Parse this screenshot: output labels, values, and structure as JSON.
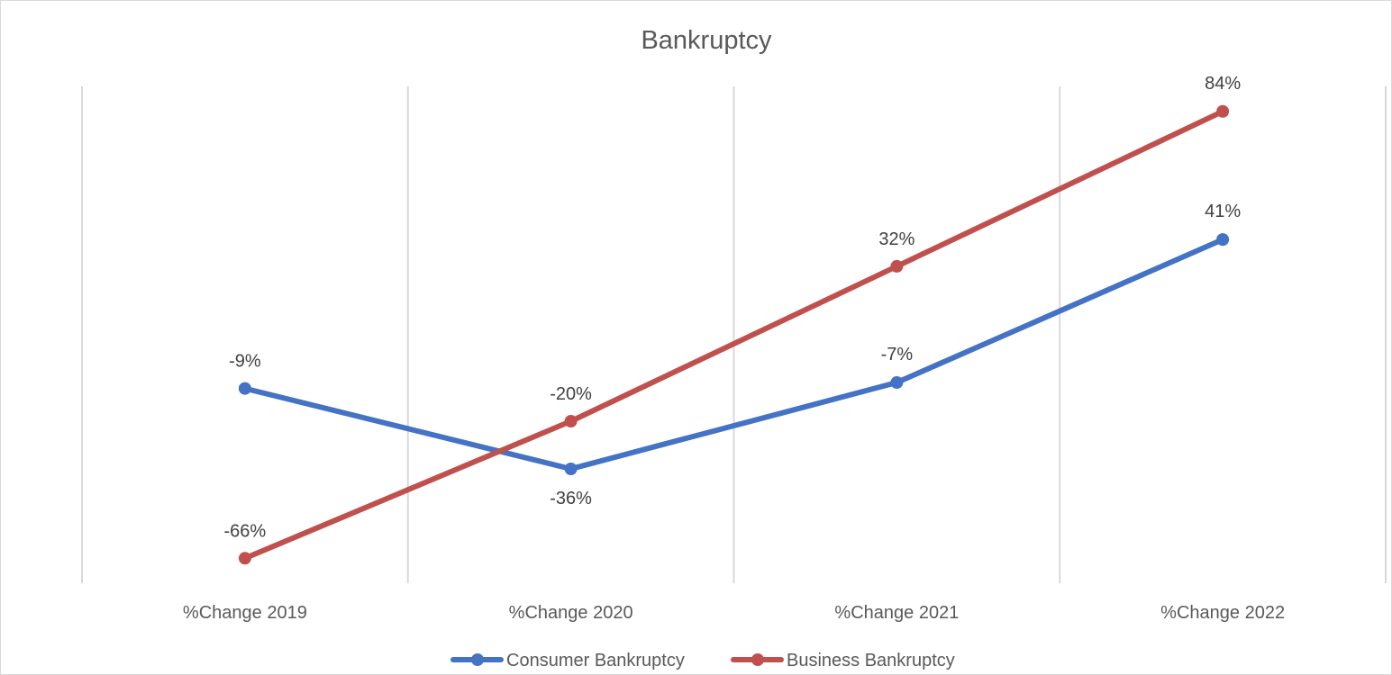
{
  "chart_data": {
    "type": "line",
    "title": "Bankruptcy",
    "categories": [
      "%Change 2019",
      "%Change 2020",
      "%Change 2021",
      "%Change 2022"
    ],
    "series": [
      {
        "name": "Consumer Bankruptcy",
        "values": [
          -9,
          -36,
          -7,
          41
        ],
        "labels": [
          "-9%",
          "-36%",
          "-7%",
          "41%"
        ],
        "color": "#4472c4"
      },
      {
        "name": "Business Bankruptcy",
        "values": [
          -66,
          -20,
          32,
          84
        ],
        "labels": [
          "-66%",
          "-20%",
          "32%",
          "84%"
        ],
        "color": "#c0504d"
      }
    ],
    "xlabel": "",
    "ylabel": "",
    "value_unit": "%",
    "vertical_gridlines": true,
    "horizontal_gridlines": false,
    "y_axis_visible": false,
    "legend_position": "bottom"
  }
}
